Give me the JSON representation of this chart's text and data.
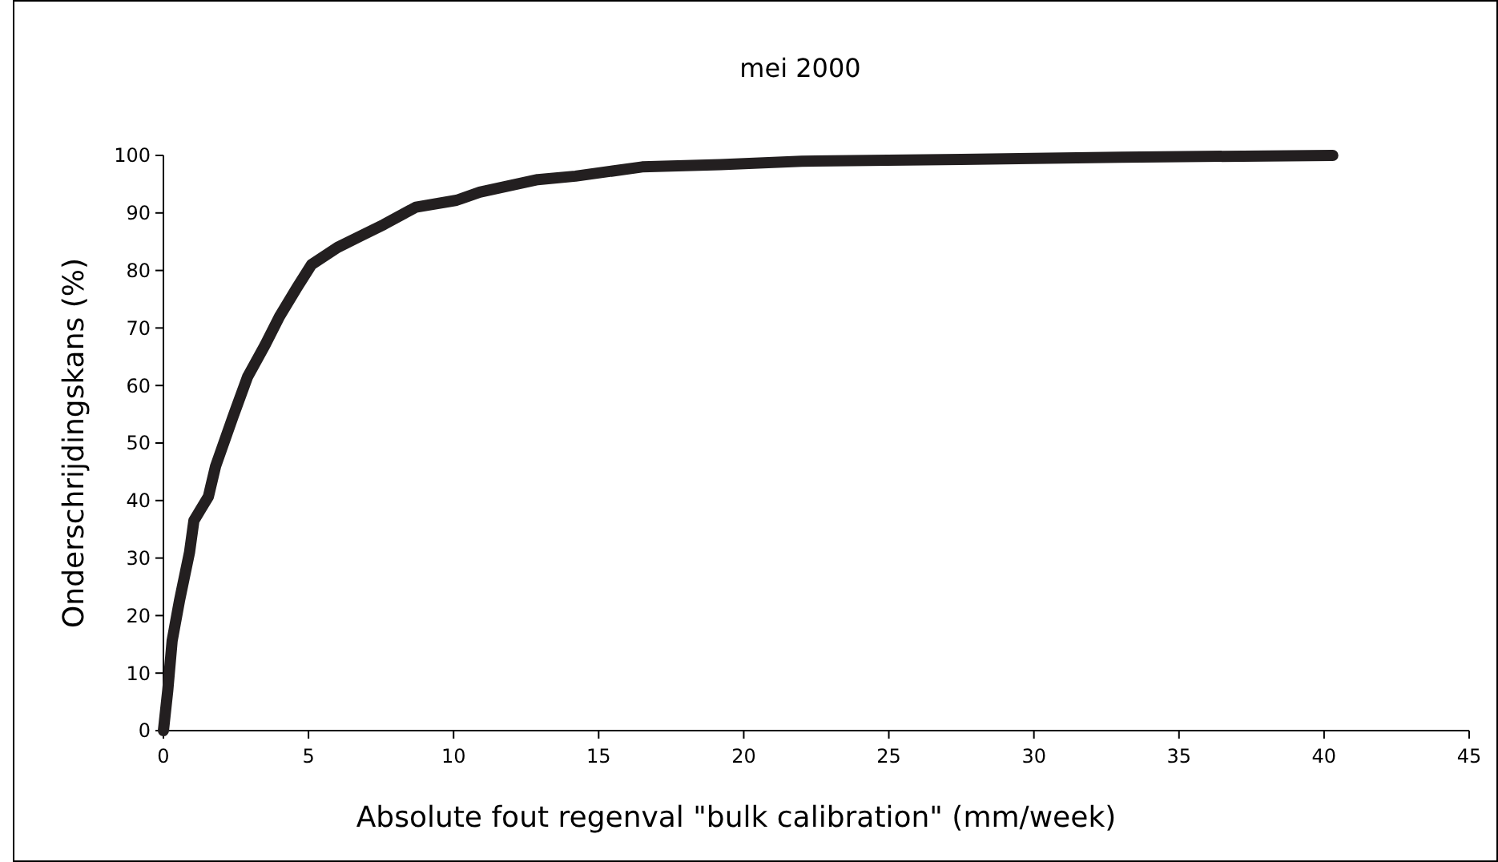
{
  "chart_data": {
    "type": "line",
    "title": "mei 2000",
    "xlabel": "Absolute fout regenval \"bulk calibration\" (mm/week)",
    "ylabel": "Onderschrijdingskans (%)",
    "xlim": [
      0,
      45
    ],
    "xticks": [
      0,
      5,
      10,
      15,
      20,
      25,
      30,
      35,
      40,
      45
    ],
    "ylim": [
      0,
      100
    ],
    "yticks": [
      0,
      10,
      20,
      30,
      40,
      50,
      60,
      70,
      80,
      90,
      100
    ],
    "grid": false,
    "marker": "none",
    "line_style": "solid",
    "series": [
      {
        "color": "#231f20",
        "x": [
          0,
          0.15,
          0.3,
          0.55,
          0.9,
          1.05,
          1.55,
          1.8,
          2.4,
          2.9,
          3.5,
          4,
          4.6,
          5.1,
          6,
          6.8,
          7.6,
          8.7,
          10.1,
          10.9,
          12.9,
          14.2,
          16.5,
          19.2,
          22,
          27.5,
          33,
          40.3
        ],
        "values": [
          0,
          7,
          15.6,
          22.5,
          31,
          36.5,
          40.7,
          46,
          54.6,
          61.5,
          67,
          72,
          77,
          81,
          84,
          86,
          88,
          91,
          92.2,
          93.6,
          95.8,
          96.4,
          98,
          98.4,
          99,
          99.3,
          99.7,
          100
        ]
      }
    ]
  }
}
